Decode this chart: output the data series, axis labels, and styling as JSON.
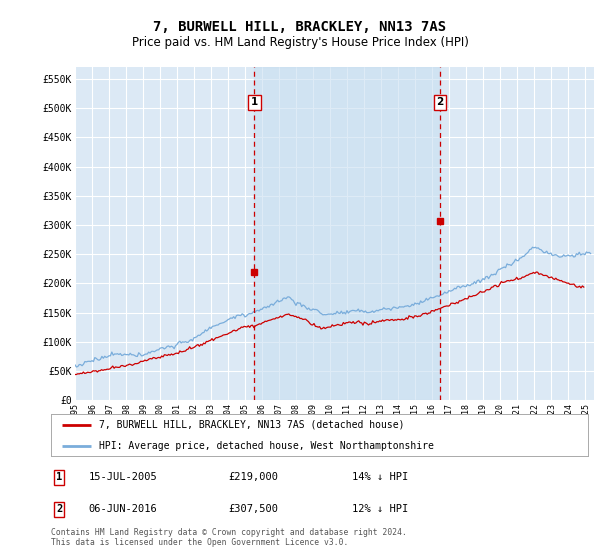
{
  "title": "7, BURWELL HILL, BRACKLEY, NN13 7AS",
  "subtitle": "Price paid vs. HM Land Registry's House Price Index (HPI)",
  "ylim": [
    0,
    570000
  ],
  "yticks": [
    0,
    50000,
    100000,
    150000,
    200000,
    250000,
    300000,
    350000,
    400000,
    450000,
    500000,
    550000
  ],
  "ytick_labels": [
    "£0",
    "£50K",
    "£100K",
    "£150K",
    "£200K",
    "£250K",
    "£300K",
    "£350K",
    "£400K",
    "£450K",
    "£500K",
    "£550K"
  ],
  "xlim_start": 1995.0,
  "xlim_end": 2025.5,
  "plot_bg_color": "#dce9f5",
  "grid_color": "#ffffff",
  "red_line_color": "#cc0000",
  "blue_line_color": "#7aaddb",
  "vline_color": "#cc0000",
  "shade_color": "#c8dff0",
  "transaction1_x": 2005.54,
  "transaction1_y": 219000,
  "transaction2_x": 2016.44,
  "transaction2_y": 307500,
  "legend_label_red": "7, BURWELL HILL, BRACKLEY, NN13 7AS (detached house)",
  "legend_label_blue": "HPI: Average price, detached house, West Northamptonshire",
  "annotation1": [
    "1",
    "15-JUL-2005",
    "£219,000",
    "14% ↓ HPI"
  ],
  "annotation2": [
    "2",
    "06-JUN-2016",
    "£307,500",
    "12% ↓ HPI"
  ],
  "footer": "Contains HM Land Registry data © Crown copyright and database right 2024.\nThis data is licensed under the Open Government Licence v3.0.",
  "title_fontsize": 10,
  "subtitle_fontsize": 8.5
}
